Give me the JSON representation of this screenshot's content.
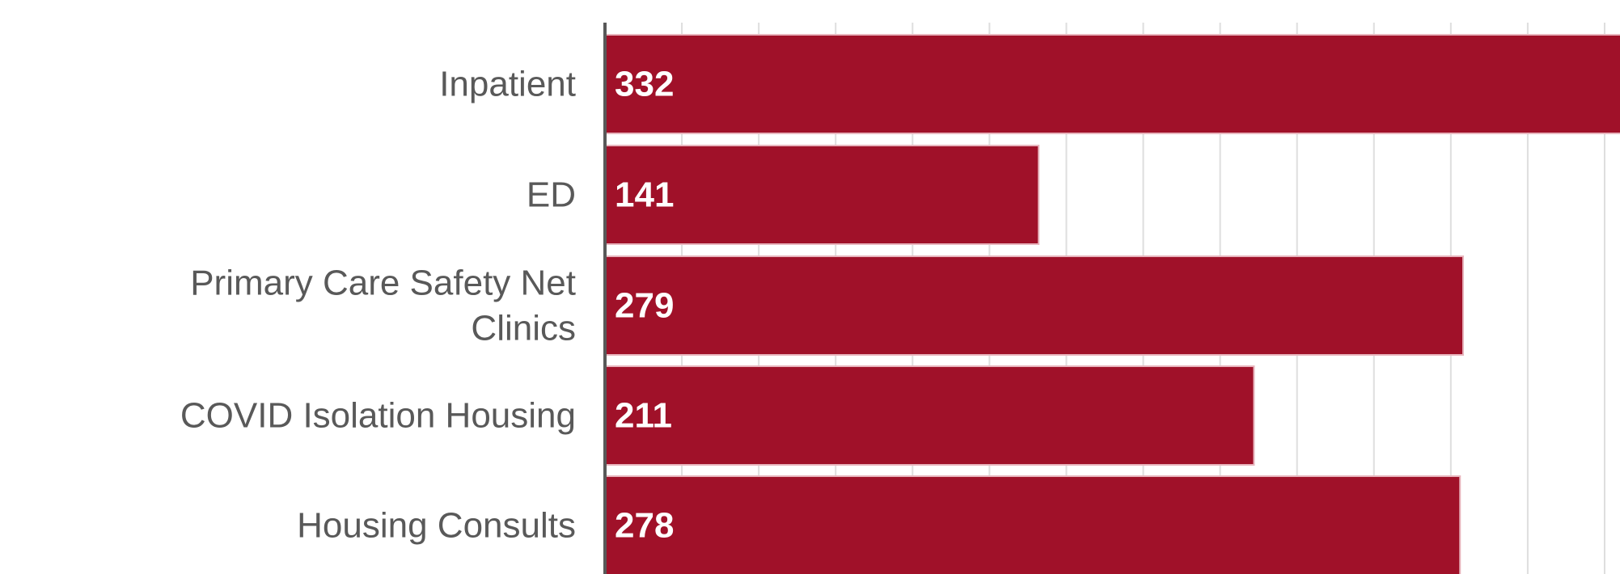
{
  "chart_data": {
    "type": "bar",
    "orientation": "horizontal",
    "categories": [
      "Inpatient",
      "ED",
      "Primary Care Safety Net Clinics",
      "COVID Isolation Housing",
      "Housing Consults"
    ],
    "category_lines": [
      [
        "Inpatient"
      ],
      [
        "ED"
      ],
      [
        "Primary Care Safety Net",
        "Clinics"
      ],
      [
        "COVID Isolation Housing"
      ],
      [
        "Housing Consults"
      ]
    ],
    "values": [
      332,
      141,
      279,
      211,
      278
    ],
    "data_labels": [
      "332",
      "141",
      "279",
      "211",
      "278"
    ],
    "xlim": [
      0,
      330
    ],
    "grid": true,
    "bar_color": "#a01129",
    "title": "",
    "xlabel": "",
    "ylabel": ""
  }
}
